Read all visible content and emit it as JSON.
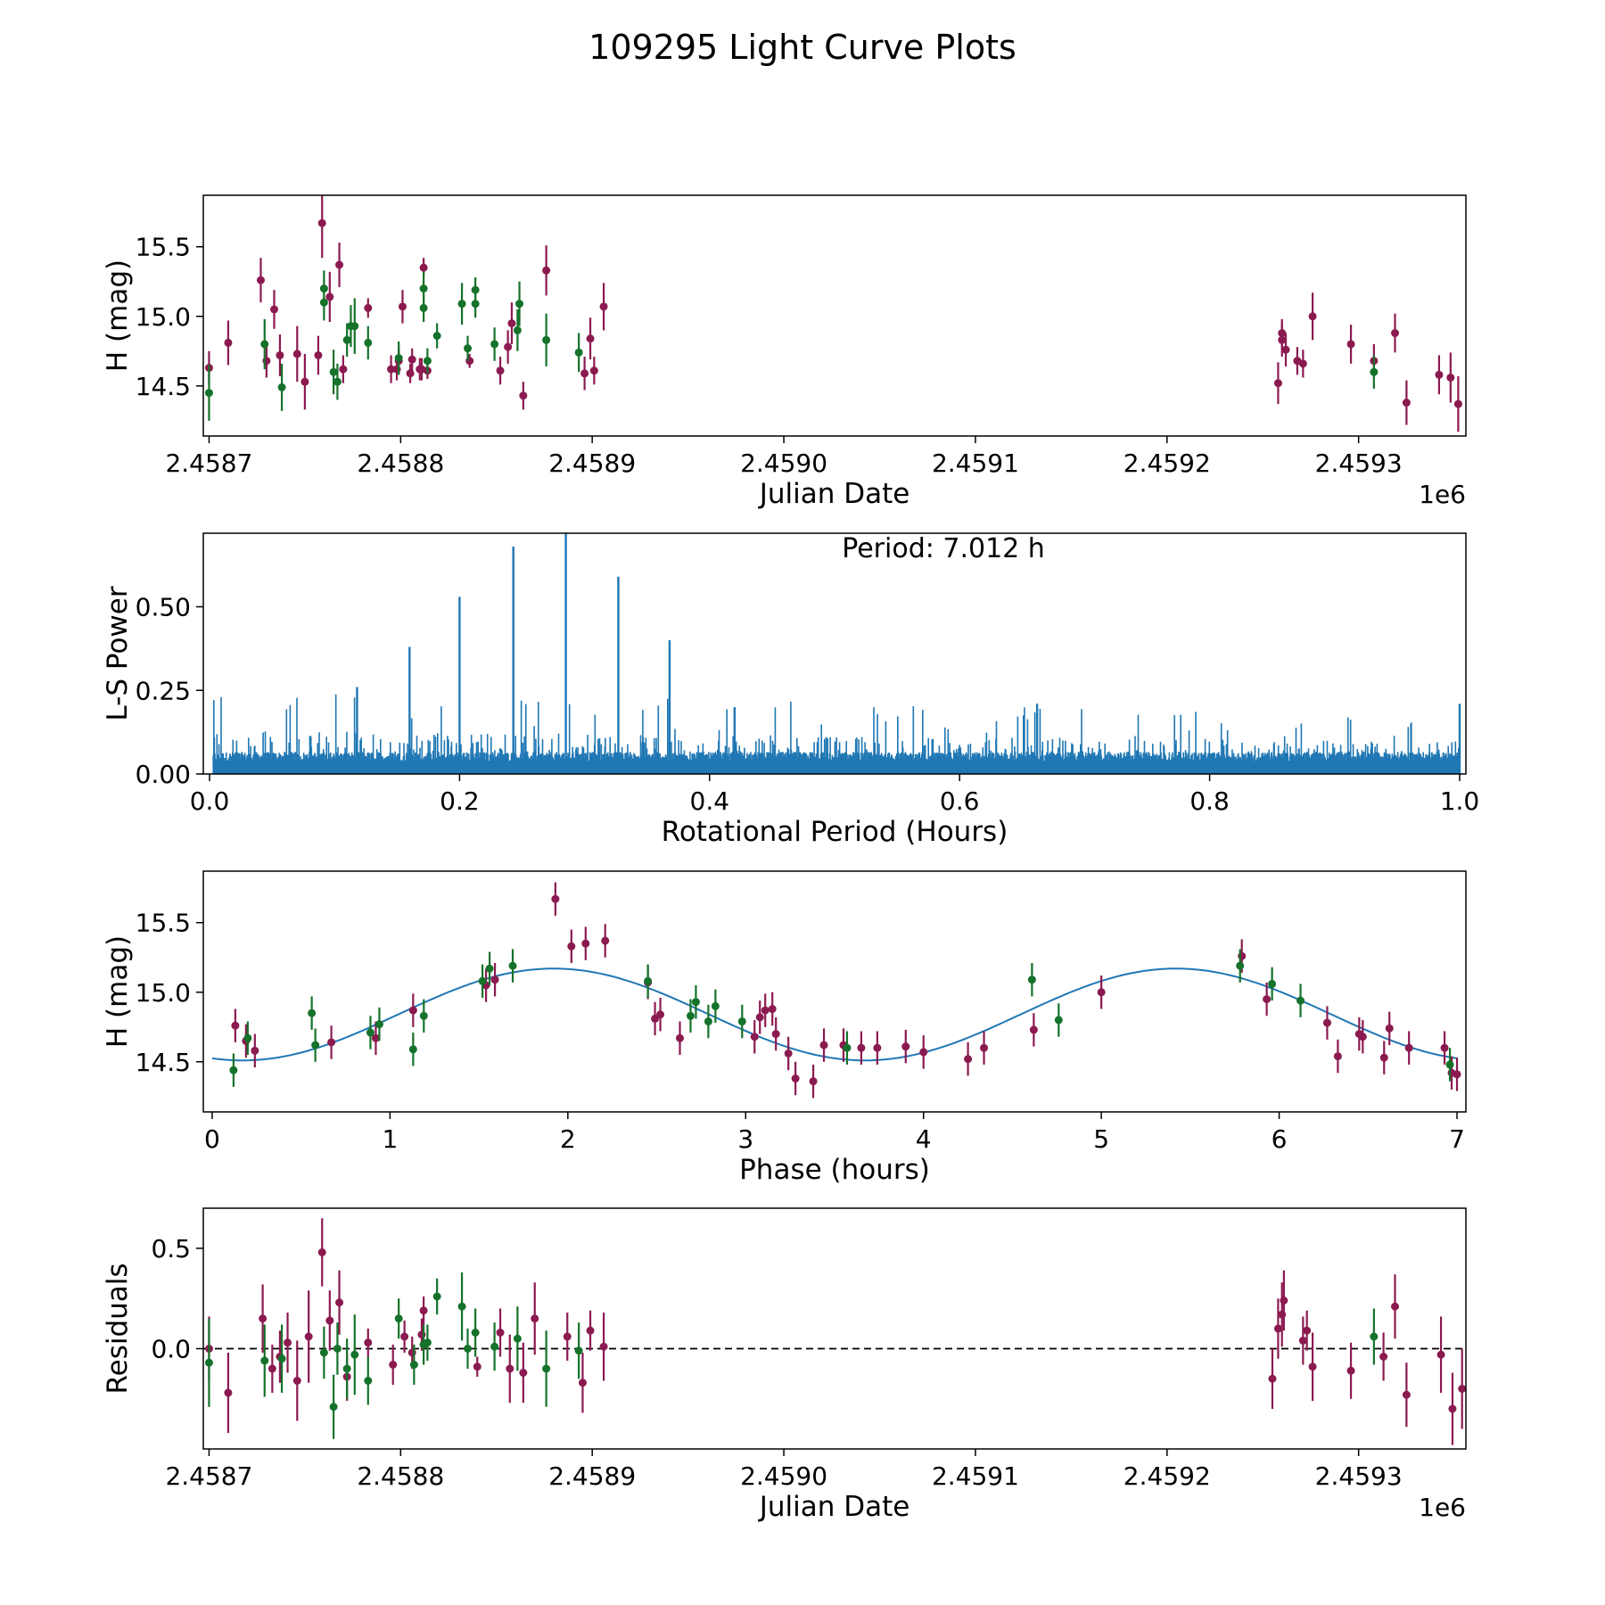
{
  "figure": {
    "suptitle": "109295 Light Curve Plots",
    "colors": {
      "magenta": "#8b1a50",
      "green": "#15722a",
      "line": "#1f77b4",
      "zero": "#000000"
    }
  },
  "chart_data": [
    {
      "type": "scatter",
      "name": "lightcurve",
      "title": "",
      "xlabel": "Julian Date",
      "ylabel": "H (mag)",
      "x_offset_label": "1e6",
      "xlim": [
        2.458697,
        2.459356
      ],
      "ylim": [
        14.14,
        15.87
      ],
      "xticks": [
        2.4587,
        2.4588,
        2.4589,
        2.459,
        2.4591,
        2.4592,
        2.4593
      ],
      "xtick_labels": [
        "2.4587",
        "2.4588",
        "2.4589",
        "2.4590",
        "2.4591",
        "2.4592",
        "2.4593"
      ],
      "yticks": [
        14.5,
        15.0,
        15.5
      ],
      "ytick_labels": [
        "14.5",
        "15.0",
        "15.5"
      ],
      "series": [
        {
          "name": "magenta",
          "color": "#8b1a50",
          "x": [
            2.4587,
            2.45871,
            2.458727,
            2.45873,
            2.458734,
            2.458737,
            2.458746,
            2.45875,
            2.458757,
            2.458759,
            2.458763,
            2.458768,
            2.45877,
            2.458783,
            2.458795,
            2.458798,
            2.458799,
            2.458801,
            2.458805,
            2.458806,
            2.45881,
            2.458811,
            2.458812,
            2.458814,
            2.458836,
            2.458852,
            2.458856,
            2.458858,
            2.458864,
            2.458876,
            2.458896,
            2.458899,
            2.458901,
            2.458906,
            2.459258,
            2.45926,
            2.45926,
            2.459262,
            2.459268,
            2.459271,
            2.459276,
            2.459296,
            2.459308,
            2.459319,
            2.459325,
            2.459342,
            2.459348,
            2.459352
          ],
          "y": [
            14.63,
            14.81,
            15.26,
            14.68,
            15.05,
            14.72,
            14.73,
            14.53,
            14.72,
            15.67,
            15.14,
            15.37,
            14.62,
            15.06,
            14.62,
            14.62,
            14.68,
            15.07,
            14.59,
            14.69,
            14.62,
            14.62,
            15.35,
            14.61,
            14.68,
            14.61,
            14.78,
            14.95,
            14.43,
            15.33,
            14.59,
            14.84,
            14.61,
            15.07,
            14.52,
            14.88,
            14.83,
            14.76,
            14.68,
            14.66,
            15.0,
            14.8,
            14.68,
            14.88,
            14.38,
            14.58,
            14.56,
            14.37
          ],
          "yerr": [
            0.12,
            0.16,
            0.16,
            0.12,
            0.14,
            0.15,
            0.2,
            0.2,
            0.14,
            0.25,
            0.18,
            0.16,
            0.1,
            0.07,
            0.1,
            0.08,
            0.1,
            0.12,
            0.07,
            0.08,
            0.08,
            0.08,
            0.07,
            0.06,
            0.05,
            0.1,
            0.12,
            0.15,
            0.1,
            0.18,
            0.12,
            0.15,
            0.1,
            0.17,
            0.15,
            0.1,
            0.12,
            0.12,
            0.1,
            0.1,
            0.17,
            0.14,
            0.12,
            0.14,
            0.16,
            0.14,
            0.18,
            0.2
          ]
        },
        {
          "name": "green",
          "color": "#15722a",
          "x": [
            2.4587,
            2.458729,
            2.458738,
            2.45876,
            2.45876,
            2.458765,
            2.458767,
            2.458772,
            2.458774,
            2.458776,
            2.458783,
            2.458799,
            2.458812,
            2.458812,
            2.458814,
            2.458819,
            2.458832,
            2.458835,
            2.458839,
            2.458839,
            2.458849,
            2.458861,
            2.458862,
            2.458876,
            2.458893,
            2.459308
          ],
          "y": [
            14.45,
            14.8,
            14.49,
            15.1,
            15.2,
            14.6,
            14.53,
            14.83,
            14.93,
            14.93,
            14.81,
            14.7,
            15.06,
            15.2,
            14.68,
            14.86,
            15.09,
            14.77,
            15.09,
            15.19,
            14.8,
            14.9,
            15.09,
            14.83,
            14.74,
            14.6
          ],
          "yerr": [
            0.2,
            0.18,
            0.17,
            0.13,
            0.13,
            0.16,
            0.13,
            0.12,
            0.15,
            0.2,
            0.12,
            0.12,
            0.1,
            0.12,
            0.09,
            0.09,
            0.15,
            0.09,
            0.1,
            0.09,
            0.12,
            0.15,
            0.16,
            0.19,
            0.14,
            0.12
          ]
        }
      ]
    },
    {
      "type": "line",
      "name": "periodogram",
      "xlabel": "Rotational Period (Hours)",
      "ylabel": "L-S Power",
      "annotation": "Period: 7.012 h",
      "xlim": [
        -0.005,
        1.005
      ],
      "ylim": [
        0.0,
        0.72
      ],
      "xticks": [
        0.0,
        0.2,
        0.4,
        0.6,
        0.8,
        1.0
      ],
      "xtick_labels": [
        "0.0",
        "0.2",
        "0.4",
        "0.6",
        "0.8",
        "1.0"
      ],
      "yticks": [
        0.0,
        0.25,
        0.5
      ],
      "ytick_labels": [
        "0.00",
        "0.25",
        "0.50"
      ],
      "noise_floor": 0.06,
      "noise_ceiling": 0.26,
      "peaks": [
        {
          "x": 0.118,
          "y": 0.26
        },
        {
          "x": 0.16,
          "y": 0.38
        },
        {
          "x": 0.2,
          "y": 0.53
        },
        {
          "x": 0.243,
          "y": 0.68
        },
        {
          "x": 0.285,
          "y": 0.72
        },
        {
          "x": 0.327,
          "y": 0.59
        },
        {
          "x": 0.368,
          "y": 0.4
        },
        {
          "x": 0.42,
          "y": 0.2
        },
        {
          "x": 0.662,
          "y": 0.21
        },
        {
          "x": 1.0,
          "y": 0.21
        }
      ],
      "series": [
        {
          "name": "power",
          "color": "#1f77b4"
        }
      ]
    },
    {
      "type": "scatter",
      "name": "folded",
      "xlabel": "Phase (hours)",
      "ylabel": "H (mag)",
      "xlim": [
        -0.05,
        7.05
      ],
      "ylim": [
        14.14,
        15.87
      ],
      "xticks": [
        0,
        1,
        2,
        3,
        4,
        5,
        6,
        7
      ],
      "xtick_labels": [
        "0",
        "1",
        "2",
        "3",
        "4",
        "5",
        "6",
        "7"
      ],
      "yticks": [
        14.5,
        15.0,
        15.5
      ],
      "ytick_labels": [
        "14.5",
        "15.0",
        "15.5"
      ],
      "model": {
        "type": "sine",
        "mean": 14.84,
        "amplitude": 0.33,
        "period": 3.5,
        "peak_phase": 1.92
      },
      "series": [
        {
          "name": "magenta",
          "color": "#8b1a50",
          "x": [
            0.13,
            0.19,
            0.24,
            0.67,
            0.92,
            1.13,
            1.54,
            1.59,
            1.93,
            2.02,
            2.1,
            2.21,
            2.45,
            2.49,
            2.52,
            2.63,
            3.05,
            3.08,
            3.11,
            3.15,
            3.17,
            3.24,
            3.28,
            3.38,
            3.44,
            3.55,
            3.65,
            3.74,
            3.9,
            4.0,
            4.25,
            4.34,
            4.62,
            5.0,
            5.79,
            5.93,
            6.27,
            6.33,
            6.45,
            6.47,
            6.59,
            6.62,
            6.73,
            6.93,
            6.97,
            7.0
          ],
          "y": [
            14.76,
            14.65,
            14.58,
            14.64,
            14.67,
            14.87,
            15.05,
            15.09,
            15.67,
            15.33,
            15.35,
            15.37,
            15.07,
            14.81,
            14.84,
            14.67,
            14.68,
            14.82,
            14.87,
            14.88,
            14.7,
            14.56,
            14.38,
            14.36,
            14.62,
            14.62,
            14.6,
            14.6,
            14.61,
            14.57,
            14.52,
            14.6,
            14.73,
            15.0,
            15.26,
            14.95,
            14.78,
            14.54,
            14.7,
            14.68,
            14.53,
            14.74,
            14.6,
            14.6,
            14.42,
            14.41
          ]
        },
        {
          "name": "green",
          "color": "#15722a",
          "x": [
            0.12,
            0.2,
            0.56,
            0.58,
            0.89,
            0.94,
            1.13,
            1.19,
            1.52,
            1.56,
            1.69,
            2.45,
            2.69,
            2.72,
            2.79,
            2.83,
            2.98,
            3.57,
            4.61,
            4.76,
            5.78,
            5.96,
            6.12,
            6.96
          ],
          "y": [
            14.44,
            14.67,
            14.85,
            14.62,
            14.71,
            14.77,
            14.59,
            14.83,
            15.08,
            15.17,
            15.19,
            15.08,
            14.83,
            14.93,
            14.79,
            14.9,
            14.79,
            14.6,
            15.09,
            14.8,
            15.19,
            15.06,
            14.94,
            14.48
          ]
        }
      ]
    },
    {
      "type": "scatter",
      "name": "residuals",
      "xlabel": "Julian Date",
      "ylabel": "Residuals",
      "x_offset_label": "1e6",
      "xlim": [
        2.458697,
        2.459356
      ],
      "ylim": [
        -0.5,
        0.7
      ],
      "xticks": [
        2.4587,
        2.4588,
        2.4589,
        2.459,
        2.4591,
        2.4592,
        2.4593
      ],
      "xtick_labels": [
        "2.4587",
        "2.4588",
        "2.4589",
        "2.4590",
        "2.4591",
        "2.4592",
        "2.4593"
      ],
      "yticks": [
        0.0,
        0.5
      ],
      "ytick_labels": [
        "0.0",
        "0.5"
      ],
      "zero_line": 0.0,
      "series": [
        {
          "name": "magenta",
          "color": "#8b1a50",
          "x": [
            2.4587,
            2.45871,
            2.458728,
            2.458733,
            2.458737,
            2.458741,
            2.458746,
            2.458752,
            2.458759,
            2.458763,
            2.458768,
            2.458772,
            2.458783,
            2.458796,
            2.458802,
            2.458806,
            2.458811,
            2.458812,
            2.45884,
            2.458852,
            2.458857,
            2.458864,
            2.45887,
            2.458887,
            2.458895,
            2.458899,
            2.458906,
            2.459255,
            2.459258,
            2.45926,
            2.459261,
            2.459271,
            2.459273,
            2.459276,
            2.459296,
            2.459313,
            2.459319,
            2.459325,
            2.459343,
            2.459349,
            2.459354
          ],
          "y": [
            0.0,
            -0.22,
            0.15,
            -0.1,
            -0.04,
            0.03,
            -0.16,
            0.06,
            0.48,
            0.14,
            0.23,
            -0.14,
            0.03,
            -0.08,
            0.06,
            -0.02,
            0.07,
            0.19,
            -0.09,
            0.08,
            -0.1,
            -0.12,
            0.15,
            0.06,
            -0.17,
            0.09,
            0.01,
            -0.15,
            0.1,
            0.17,
            0.24,
            0.04,
            0.09,
            -0.09,
            -0.11,
            -0.04,
            0.21,
            -0.23,
            -0.03,
            -0.3,
            -0.2
          ],
          "yerr": [
            0.16,
            0.2,
            0.17,
            0.12,
            0.13,
            0.15,
            0.2,
            0.23,
            0.17,
            0.15,
            0.16,
            0.12,
            0.07,
            0.1,
            0.08,
            0.08,
            0.08,
            0.07,
            0.05,
            0.12,
            0.17,
            0.15,
            0.18,
            0.12,
            0.15,
            0.1,
            0.17,
            0.15,
            0.15,
            0.16,
            0.15,
            0.12,
            0.1,
            0.17,
            0.14,
            0.12,
            0.16,
            0.16,
            0.19,
            0.18,
            0.2
          ]
        },
        {
          "name": "green",
          "color": "#15722a",
          "x": [
            2.4587,
            2.458729,
            2.458738,
            2.45876,
            2.458765,
            2.458767,
            2.458772,
            2.458776,
            2.458783,
            2.458799,
            2.458807,
            2.458812,
            2.458814,
            2.458819,
            2.458832,
            2.458835,
            2.458839,
            2.458849,
            2.458861,
            2.458876,
            2.458893,
            2.459308
          ],
          "y": [
            -0.07,
            -0.06,
            -0.05,
            -0.02,
            -0.29,
            0.0,
            -0.1,
            -0.03,
            -0.16,
            0.15,
            -0.08,
            0.02,
            0.03,
            0.26,
            0.21,
            0.0,
            0.08,
            0.01,
            0.05,
            -0.1,
            -0.01,
            0.06
          ],
          "yerr": [
            0.22,
            0.18,
            0.17,
            0.13,
            0.16,
            0.13,
            0.15,
            0.2,
            0.12,
            0.1,
            0.1,
            0.1,
            0.09,
            0.09,
            0.17,
            0.1,
            0.12,
            0.12,
            0.16,
            0.19,
            0.14,
            0.14
          ]
        }
      ]
    }
  ]
}
